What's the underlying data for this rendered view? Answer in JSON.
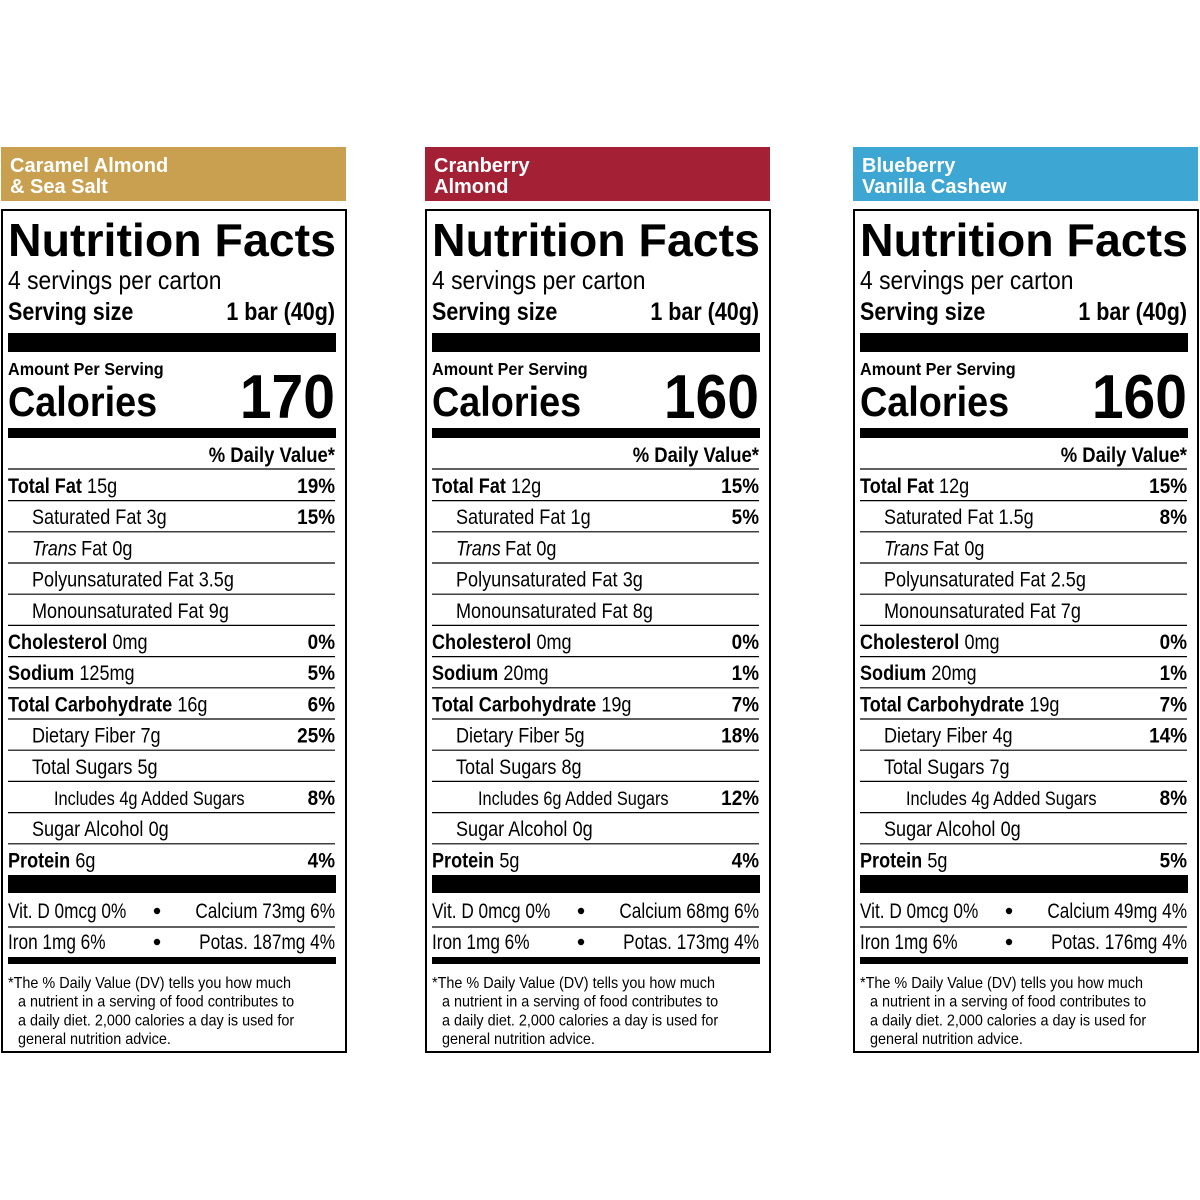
{
  "labels": [
    {
      "flavor": [
        "Caramel Almond",
        "& Sea Salt"
      ],
      "color": "#c9a050",
      "title": "Nutrition Facts",
      "servings": "4 servings per carton",
      "serving_size_label": "Serving size",
      "serving_size": "1 bar (40g)",
      "amount_per_serving": "Amount Per Serving",
      "calories_label": "Calories",
      "calories": 170,
      "daily_value_header": "% Daily Value*",
      "rows": [
        {
          "name": "Total Fat",
          "amount": "15g",
          "dv": "19%",
          "sub": [
            {
              "name": "Saturated Fat",
              "amount": "3g",
              "dv": "15%"
            },
            {
              "name_italic": "Trans",
              "name": "Fat",
              "amount": "0g"
            },
            {
              "name": "Polyunsaturated Fat",
              "amount": "3.5g"
            },
            {
              "name": "Monounsaturated Fat",
              "amount": "9g"
            }
          ]
        },
        {
          "name": "Cholesterol",
          "amount": "0mg",
          "dv": "0%"
        },
        {
          "name": "Sodium",
          "amount": "125mg",
          "dv": "5%"
        },
        {
          "name": "Total Carbohydrate",
          "amount": "16g",
          "dv": "6%",
          "sub": [
            {
              "name": "Dietary Fiber",
              "amount": "7g",
              "dv": "25%"
            },
            {
              "name": "Total Sugars",
              "amount": "5g",
              "sub": [
                {
                  "name": "Includes 4g Added Sugars",
                  "dv": "8%"
                }
              ]
            },
            {
              "name": "Sugar Alcohol",
              "amount": "0g"
            }
          ]
        },
        {
          "name": "Protein",
          "amount": "6g",
          "dv": "4%"
        }
      ],
      "vitamins": [
        [
          "Vit. D 0mcg 0%",
          "Calcium 73mg 6%"
        ],
        [
          "Iron 1mg 6%",
          "Potas. 187mg 4%"
        ]
      ],
      "footnote": [
        "*The % Daily Value (DV) tells you how much",
        "a nutrient in a serving of food contributes to",
        "a daily diet. 2,000 calories a day is used for",
        "general nutrition advice."
      ]
    },
    {
      "flavor": [
        "Cranberry",
        "Almond"
      ],
      "color": "#a32035",
      "title": "Nutrition Facts",
      "servings": "4 servings per carton",
      "serving_size_label": "Serving size",
      "serving_size": "1 bar (40g)",
      "amount_per_serving": "Amount Per Serving",
      "calories_label": "Calories",
      "calories": 160,
      "daily_value_header": "% Daily Value*",
      "rows": [
        {
          "name": "Total Fat",
          "amount": "12g",
          "dv": "15%",
          "sub": [
            {
              "name": "Saturated Fat",
              "amount": "1g",
              "dv": "5%"
            },
            {
              "name_italic": "Trans",
              "name": "Fat",
              "amount": "0g"
            },
            {
              "name": "Polyunsaturated Fat",
              "amount": "3g"
            },
            {
              "name": "Monounsaturated Fat",
              "amount": "8g"
            }
          ]
        },
        {
          "name": "Cholesterol",
          "amount": "0mg",
          "dv": "0%"
        },
        {
          "name": "Sodium",
          "amount": "20mg",
          "dv": "1%"
        },
        {
          "name": "Total Carbohydrate",
          "amount": "19g",
          "dv": "7%",
          "sub": [
            {
              "name": "Dietary Fiber",
              "amount": "5g",
              "dv": "18%"
            },
            {
              "name": "Total Sugars",
              "amount": "8g",
              "sub": [
                {
                  "name": "Includes 6g Added Sugars",
                  "dv": "12%"
                }
              ]
            },
            {
              "name": "Sugar Alcohol",
              "amount": "0g"
            }
          ]
        },
        {
          "name": "Protein",
          "amount": "5g",
          "dv": "4%"
        }
      ],
      "vitamins": [
        [
          "Vit. D 0mcg 0%",
          "Calcium 68mg 6%"
        ],
        [
          "Iron 1mg 6%",
          "Potas. 173mg 4%"
        ]
      ],
      "footnote": [
        "*The % Daily Value (DV) tells you how much",
        "a nutrient in a serving of food contributes to",
        "a daily diet. 2,000 calories a day is used for",
        "general nutrition advice."
      ]
    },
    {
      "flavor": [
        "Blueberry",
        "Vanilla Cashew"
      ],
      "color": "#3ea6d2",
      "title": "Nutrition Facts",
      "servings": "4 servings per carton",
      "serving_size_label": "Serving size",
      "serving_size": "1 bar (40g)",
      "amount_per_serving": "Amount Per Serving",
      "calories_label": "Calories",
      "calories": 160,
      "daily_value_header": "% Daily Value*",
      "rows": [
        {
          "name": "Total Fat",
          "amount": "12g",
          "dv": "15%",
          "sub": [
            {
              "name": "Saturated Fat",
              "amount": "1.5g",
              "dv": "8%"
            },
            {
              "name_italic": "Trans",
              "name": "Fat",
              "amount": "0g"
            },
            {
              "name": "Polyunsaturated Fat",
              "amount": "2.5g"
            },
            {
              "name": "Monounsaturated Fat",
              "amount": "7g"
            }
          ]
        },
        {
          "name": "Cholesterol",
          "amount": "0mg",
          "dv": "0%"
        },
        {
          "name": "Sodium",
          "amount": "20mg",
          "dv": "1%"
        },
        {
          "name": "Total Carbohydrate",
          "amount": "19g",
          "dv": "7%",
          "sub": [
            {
              "name": "Dietary Fiber",
              "amount": "4g",
              "dv": "14%"
            },
            {
              "name": "Total Sugars",
              "amount": "7g",
              "sub": [
                {
                  "name": "Includes 4g Added Sugars",
                  "dv": "8%"
                }
              ]
            },
            {
              "name": "Sugar Alcohol",
              "amount": "0g"
            }
          ]
        },
        {
          "name": "Protein",
          "amount": "5g",
          "dv": "5%"
        }
      ],
      "vitamins": [
        [
          "Vit. D 0mcg 0%",
          "Calcium 49mg 4%"
        ],
        [
          "Iron 1mg 6%",
          "Potas. 176mg 4%"
        ]
      ],
      "footnote": [
        "*The % Daily Value (DV) tells you how much",
        "a nutrient in a serving of food contributes to",
        "a daily diet. 2,000 calories a day is used for",
        "general nutrition advice."
      ]
    }
  ]
}
